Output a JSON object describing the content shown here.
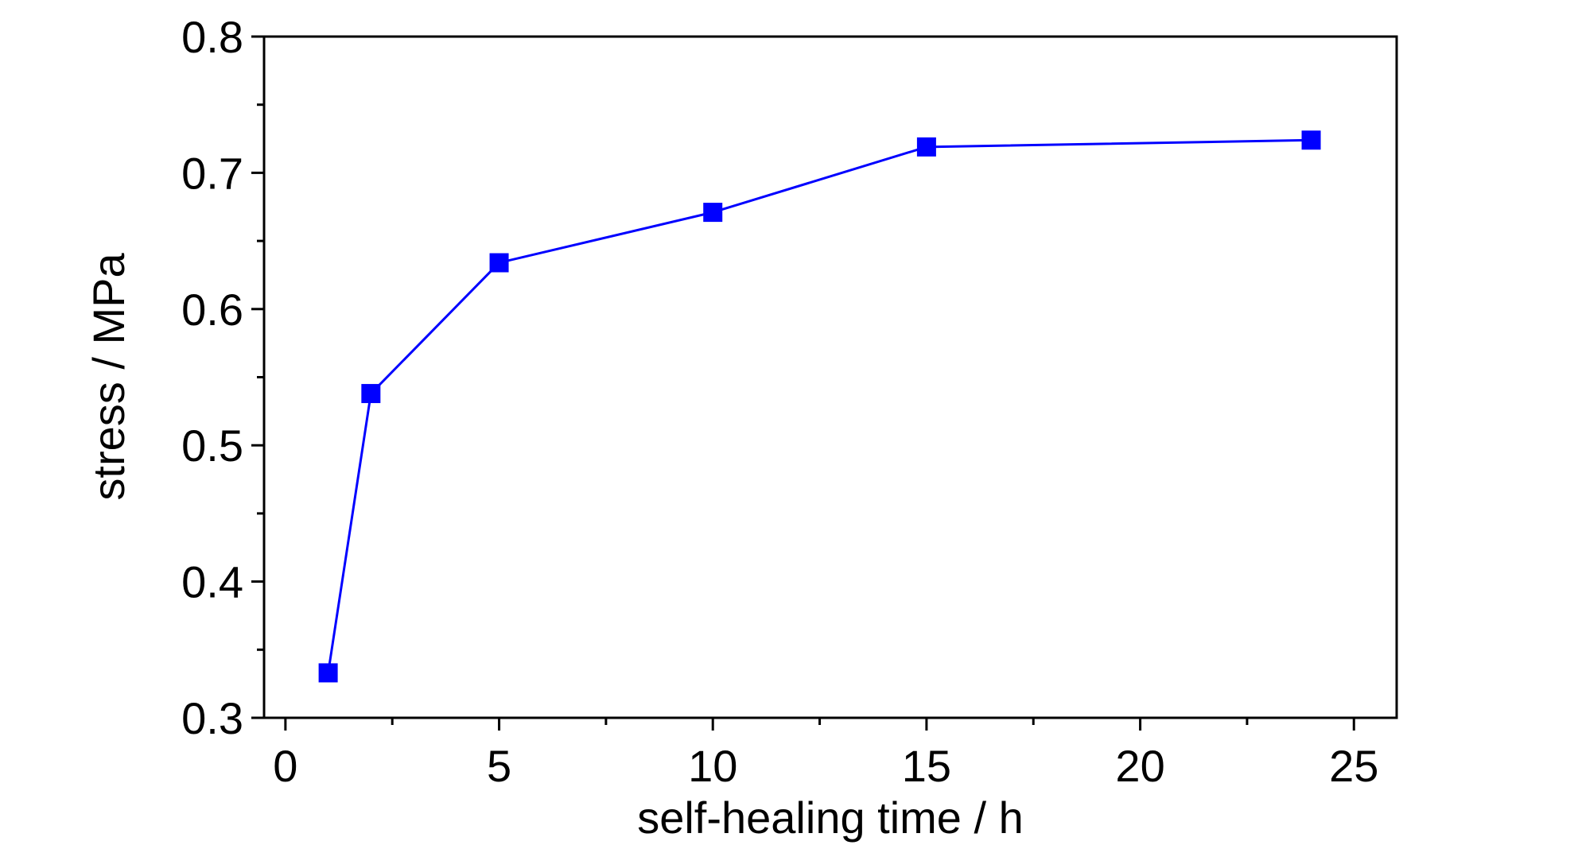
{
  "chart_data": {
    "type": "line",
    "title": "",
    "xlabel": "self-healing time / h",
    "ylabel": "stress / MPa",
    "xlim": [
      -0.5,
      26
    ],
    "ylim": [
      0.3,
      0.8
    ],
    "x_ticks": [
      "0",
      "5",
      "10",
      "15",
      "20",
      "25"
    ],
    "y_ticks": [
      "0.3",
      "0.4",
      "0.5",
      "0.6",
      "0.7",
      "0.8"
    ],
    "grid": false,
    "legend": "none",
    "marker": "square",
    "series": [
      {
        "color": "#0000ff",
        "x": [
          1,
          2,
          5,
          10,
          15,
          24
        ],
        "y": [
          0.333,
          0.538,
          0.634,
          0.671,
          0.719,
          0.724
        ]
      }
    ]
  }
}
